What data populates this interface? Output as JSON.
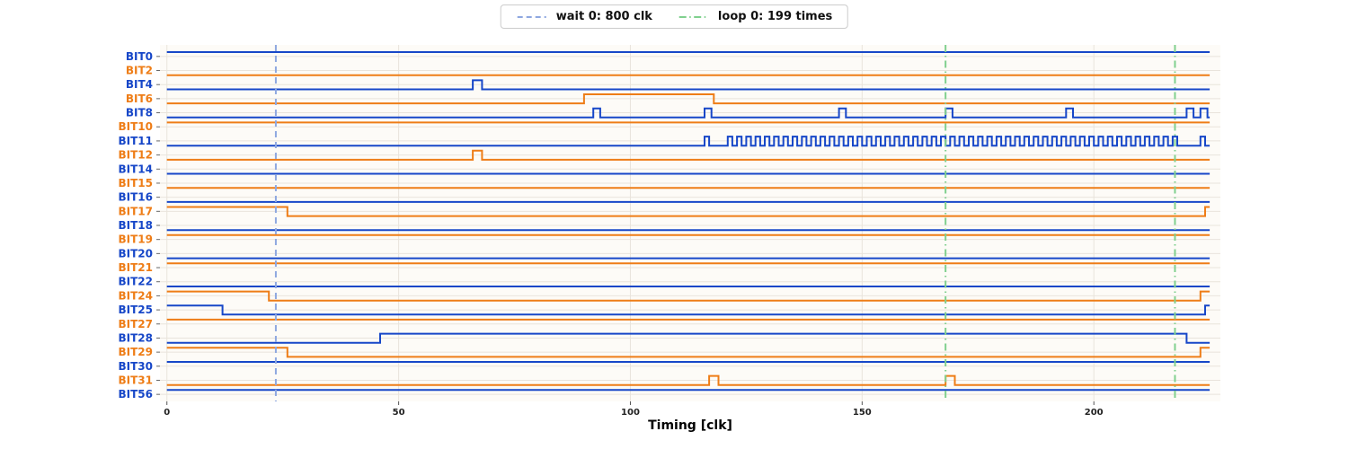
{
  "chart_data": {
    "type": "digital-timing",
    "title": "",
    "xlabel": "Timing [clk]",
    "ylabel": "",
    "xlim": [
      -1.5,
      227.3
    ],
    "xticks": [
      0,
      50,
      100,
      150,
      200
    ],
    "t_end": 225,
    "grid": true,
    "colors": {
      "blue": "#1747c8",
      "orange": "#ee7d17",
      "plot_bg": "#fdfbf7",
      "grid": "#e9e4dc"
    },
    "markers": [
      {
        "name": "wait-0",
        "label": "wait 0: 800 clk",
        "x": [
          23.5
        ],
        "color": "#8fa8e0",
        "style": "dashed"
      },
      {
        "name": "loop-0",
        "label": "loop 0: 199 times",
        "x": [
          168,
          217.5
        ],
        "color": "#80d08e",
        "style": "dashdot"
      }
    ],
    "signals": [
      {
        "name": "BIT0",
        "color": "blue",
        "high": [
          [
            0,
            225
          ]
        ]
      },
      {
        "name": "BIT2",
        "color": "orange",
        "high": []
      },
      {
        "name": "BIT4",
        "color": "blue",
        "high": [
          [
            66,
            68
          ]
        ]
      },
      {
        "name": "BIT6",
        "color": "orange",
        "high": [
          [
            90,
            118
          ]
        ]
      },
      {
        "name": "BIT8",
        "color": "blue",
        "high": [
          [
            92,
            93.5
          ],
          [
            116,
            117.5
          ],
          [
            145,
            146.5
          ],
          [
            168,
            169.5
          ],
          [
            194,
            195.5
          ],
          [
            220,
            221.5
          ],
          [
            223,
            224.5
          ]
        ]
      },
      {
        "name": "BIT10",
        "color": "orange",
        "high": [
          [
            0,
            225
          ]
        ]
      },
      {
        "name": "BIT11",
        "color": "blue",
        "high": [
          [
            116,
            117
          ],
          [
            223,
            224
          ]
        ],
        "clock": {
          "start": 121,
          "end": 219,
          "half": 1
        }
      },
      {
        "name": "BIT12",
        "color": "orange",
        "high": [
          [
            66,
            68
          ]
        ]
      },
      {
        "name": "BIT14",
        "color": "blue",
        "high": []
      },
      {
        "name": "BIT15",
        "color": "orange",
        "high": []
      },
      {
        "name": "BIT16",
        "color": "blue",
        "high": []
      },
      {
        "name": "BIT17",
        "color": "orange",
        "high": [
          [
            0,
            26
          ],
          [
            224,
            225
          ]
        ]
      },
      {
        "name": "BIT18",
        "color": "blue",
        "high": []
      },
      {
        "name": "BIT19",
        "color": "orange",
        "high": [
          [
            0,
            225
          ]
        ]
      },
      {
        "name": "BIT20",
        "color": "blue",
        "high": []
      },
      {
        "name": "BIT21",
        "color": "orange",
        "high": [
          [
            0,
            225
          ]
        ]
      },
      {
        "name": "BIT22",
        "color": "blue",
        "high": []
      },
      {
        "name": "BIT24",
        "color": "orange",
        "high": [
          [
            0,
            22
          ],
          [
            223,
            225
          ]
        ]
      },
      {
        "name": "BIT25",
        "color": "blue",
        "high": [
          [
            0,
            12
          ],
          [
            224,
            225
          ]
        ]
      },
      {
        "name": "BIT27",
        "color": "orange",
        "high": [
          [
            0,
            225
          ]
        ]
      },
      {
        "name": "BIT28",
        "color": "blue",
        "high": [
          [
            46,
            220
          ]
        ]
      },
      {
        "name": "BIT29",
        "color": "orange",
        "high": [
          [
            0,
            26
          ],
          [
            223,
            225
          ]
        ]
      },
      {
        "name": "BIT30",
        "color": "blue",
        "high": [
          [
            0,
            225
          ]
        ]
      },
      {
        "name": "BIT31",
        "color": "orange",
        "high": [
          [
            117,
            119
          ],
          [
            168,
            170
          ]
        ]
      },
      {
        "name": "BIT56",
        "color": "blue",
        "high": [
          [
            0,
            225
          ]
        ]
      }
    ]
  }
}
